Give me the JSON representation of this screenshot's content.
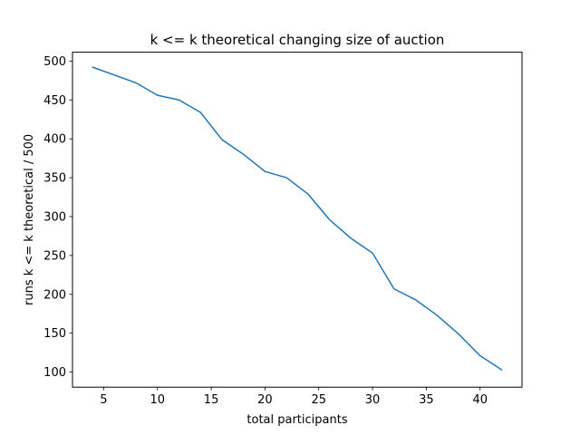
{
  "chart_data": {
    "type": "line",
    "title": "k <= k theoretical changing size of auction",
    "xlabel": "total participants",
    "ylabel": "runs k <= k theoretical / 500",
    "xlim": [
      2.1,
      43.9
    ],
    "ylim": [
      80.6,
      511.4
    ],
    "x_ticks": [
      5,
      10,
      15,
      20,
      25,
      30,
      35,
      40
    ],
    "y_ticks": [
      100,
      150,
      200,
      250,
      300,
      350,
      400,
      450,
      500
    ],
    "grid": false,
    "line_color": "#1f77b4",
    "series": [
      {
        "x": [
          4,
          6,
          8,
          10,
          12,
          14,
          16,
          18,
          20,
          22,
          24,
          26,
          28,
          30,
          32,
          34,
          36,
          38,
          40,
          42
        ],
        "y": [
          492,
          482,
          472,
          456,
          450,
          434,
          399,
          380,
          358,
          350,
          329,
          296,
          272,
          253,
          207,
          193,
          173,
          149,
          121,
          103
        ]
      }
    ]
  }
}
